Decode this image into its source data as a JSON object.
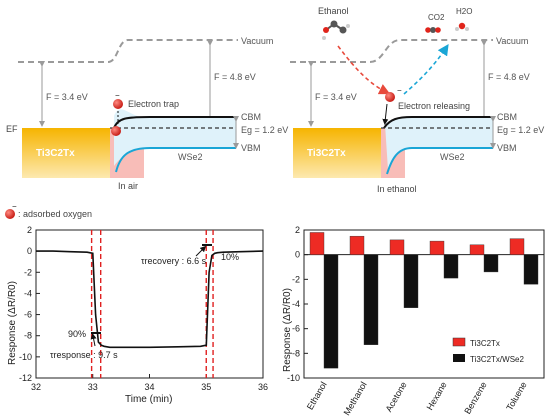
{
  "colors": {
    "vacuum_gray": "#9a9a9a",
    "ti3c2_gold": "#f6b400",
    "wse2_blue": "#1aa6d6",
    "wse2_fill": "#dff2fa",
    "pink_fill": "#f7b6b0",
    "red_electron": "#e0241b",
    "black_curve": "#111111",
    "red_arrow": "#e84a3c",
    "blue_arrow": "#1aa6d6",
    "dashed_red": "#e02020",
    "bar_red": "#ee2b24",
    "bar_black": "#111111"
  },
  "band_diagram_left": {
    "vacuum": "Vacuum",
    "phi_left": "F = 3.4 eV",
    "phi_right": "F = 4.8 eV",
    "cbm": "CBM",
    "eg": "Eg = 1.2 eV",
    "vbm": "VBM",
    "ef": "EF",
    "ti3c2": "Ti3C2Tx",
    "wse2": "WSe2",
    "electron_trap": "Electron trap",
    "caption": "In air"
  },
  "band_diagram_right": {
    "vacuum": "Vacuum",
    "phi_left": "F = 3.4 eV",
    "phi_right": "F = 4.8 eV",
    "cbm": "CBM",
    "eg": "Eg = 1.2 eV",
    "vbm": "VBM",
    "ti3c2": "Ti3C2Tx",
    "wse2": "WSe2",
    "electron_releasing": "Electron releasing",
    "ethanol": "Ethanol",
    "co2": "CO2",
    "h2o": "H2O",
    "caption": "In ethanol"
  },
  "legend_oxygen": ": adsorbed oxygen",
  "chart_data": [
    {
      "type": "line",
      "xlabel": "Time (min)",
      "ylabel": "Response (ΔR/R0)",
      "xlim": [
        32,
        36
      ],
      "ylim": [
        -12,
        2
      ],
      "xticks": [
        32,
        33,
        34,
        35,
        36
      ],
      "yticks": [
        -12,
        -10,
        -8,
        -6,
        -4,
        -2,
        0,
        2
      ],
      "series": [
        {
          "x": [
            32.0,
            32.3,
            32.6,
            32.9,
            33.0,
            33.05,
            33.1,
            33.15,
            33.2,
            33.3,
            33.5,
            34.0,
            34.5,
            34.9,
            35.0,
            35.05,
            35.1,
            35.15,
            35.2,
            35.3,
            35.6,
            36.0
          ],
          "y": [
            0.0,
            0.0,
            -0.05,
            -0.1,
            -0.2,
            -6.0,
            -8.6,
            -8.9,
            -9.0,
            -9.1,
            -9.1,
            -9.1,
            -9.05,
            -9.0,
            -8.9,
            -2.0,
            -0.4,
            -0.2,
            -0.15,
            -0.1,
            -0.05,
            0.0
          ]
        }
      ],
      "annotations": {
        "response_label": "τresponse : 9.7 s",
        "recovery_label": "τrecovery : 6.6 s",
        "pct90": "90%",
        "pct10": "10%"
      },
      "dashed_lines_x": [
        32.98,
        33.14,
        35.0,
        35.12
      ],
      "grid": false
    },
    {
      "type": "bar",
      "ylabel": "Response (ΔR/R0)",
      "ylim": [
        -10,
        2
      ],
      "yticks": [
        -10,
        -8,
        -6,
        -4,
        -2,
        0,
        2
      ],
      "categories": [
        "Ethanol",
        "Methanol",
        "Acetone",
        "Hexane",
        "Benzene",
        "Toluene"
      ],
      "series": [
        {
          "name": "Ti3C2Tx",
          "values": [
            1.8,
            1.5,
            1.2,
            1.1,
            0.8,
            1.3
          ]
        },
        {
          "name": "Ti3C2Tx/WSe2",
          "values": [
            -9.2,
            -7.3,
            -4.3,
            -1.9,
            -1.4,
            -2.4
          ]
        }
      ],
      "legend": "bottom-right",
      "grid": false
    }
  ]
}
